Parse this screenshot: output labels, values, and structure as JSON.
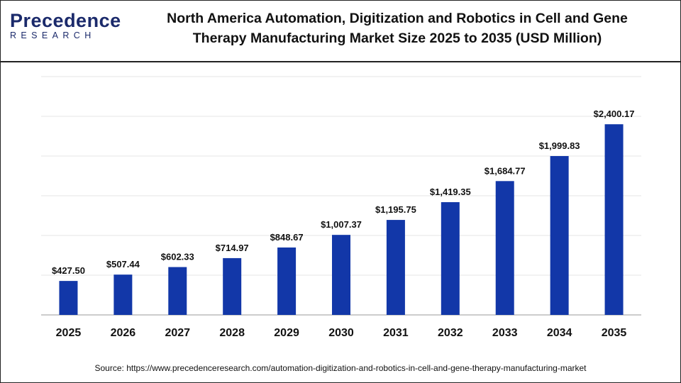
{
  "logo": {
    "name": "Precedence",
    "sub": "RESEARCH"
  },
  "chart_data": {
    "type": "bar",
    "title": "North America Automation, Digitization and Robotics in Cell and Gene Therapy Manufacturing Market Size 2025 to 2035 (USD Million)",
    "categories": [
      "2025",
      "2026",
      "2027",
      "2028",
      "2029",
      "2030",
      "2031",
      "2032",
      "2033",
      "2034",
      "2035"
    ],
    "values": [
      427.5,
      507.44,
      602.33,
      714.97,
      848.67,
      1007.37,
      1195.75,
      1419.35,
      1684.77,
      1999.83,
      2400.17
    ],
    "value_labels": [
      "$427.50",
      "$507.44",
      "$602.33",
      "$714.97",
      "$848.67",
      "$1,007.37",
      "$1,195.75",
      "$1,419.35",
      "$1,684.77",
      "$1,999.83",
      "$2,400.17"
    ],
    "color": "#1237a8",
    "ylim": [
      0,
      3000
    ],
    "yticks": [
      0,
      500,
      1000,
      1500,
      2000,
      2500,
      3000
    ],
    "grid": true,
    "source": "Source: https://www.precedenceresearch.com/automation-digitization-and-robotics-in-cell-and-gene-therapy-manufacturing-market"
  }
}
